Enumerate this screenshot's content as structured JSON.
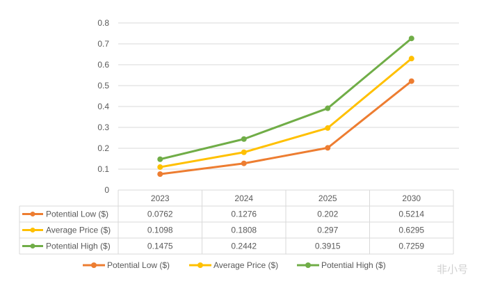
{
  "chart_data": {
    "type": "line",
    "categories": [
      "2023",
      "2024",
      "2025",
      "2030"
    ],
    "series": [
      {
        "name": "Potential Low ($)",
        "color": "#ED7D31",
        "values": [
          0.0762,
          0.1276,
          0.202,
          0.5214
        ],
        "labels": [
          "0.0762",
          "0.1276",
          "0.202",
          "0.5214"
        ]
      },
      {
        "name": "Average Price ($)",
        "color": "#FFC000",
        "values": [
          0.1098,
          0.1808,
          0.297,
          0.6295
        ],
        "labels": [
          "0.1098",
          "0.1808",
          "0.297",
          "0.6295"
        ]
      },
      {
        "name": "Potential High ($)",
        "color": "#70AD47",
        "values": [
          0.1475,
          0.2442,
          0.3915,
          0.7259
        ],
        "labels": [
          "0.1475",
          "0.2442",
          "0.3915",
          "0.7259"
        ]
      }
    ],
    "ylim": [
      0,
      0.8
    ],
    "yticks": [
      "0",
      "0.1",
      "0.2",
      "0.3",
      "0.4",
      "0.5",
      "0.6",
      "0.7",
      "0.8"
    ],
    "grid": true,
    "data_table": true,
    "legend": "bottom"
  },
  "watermark": "非小号"
}
